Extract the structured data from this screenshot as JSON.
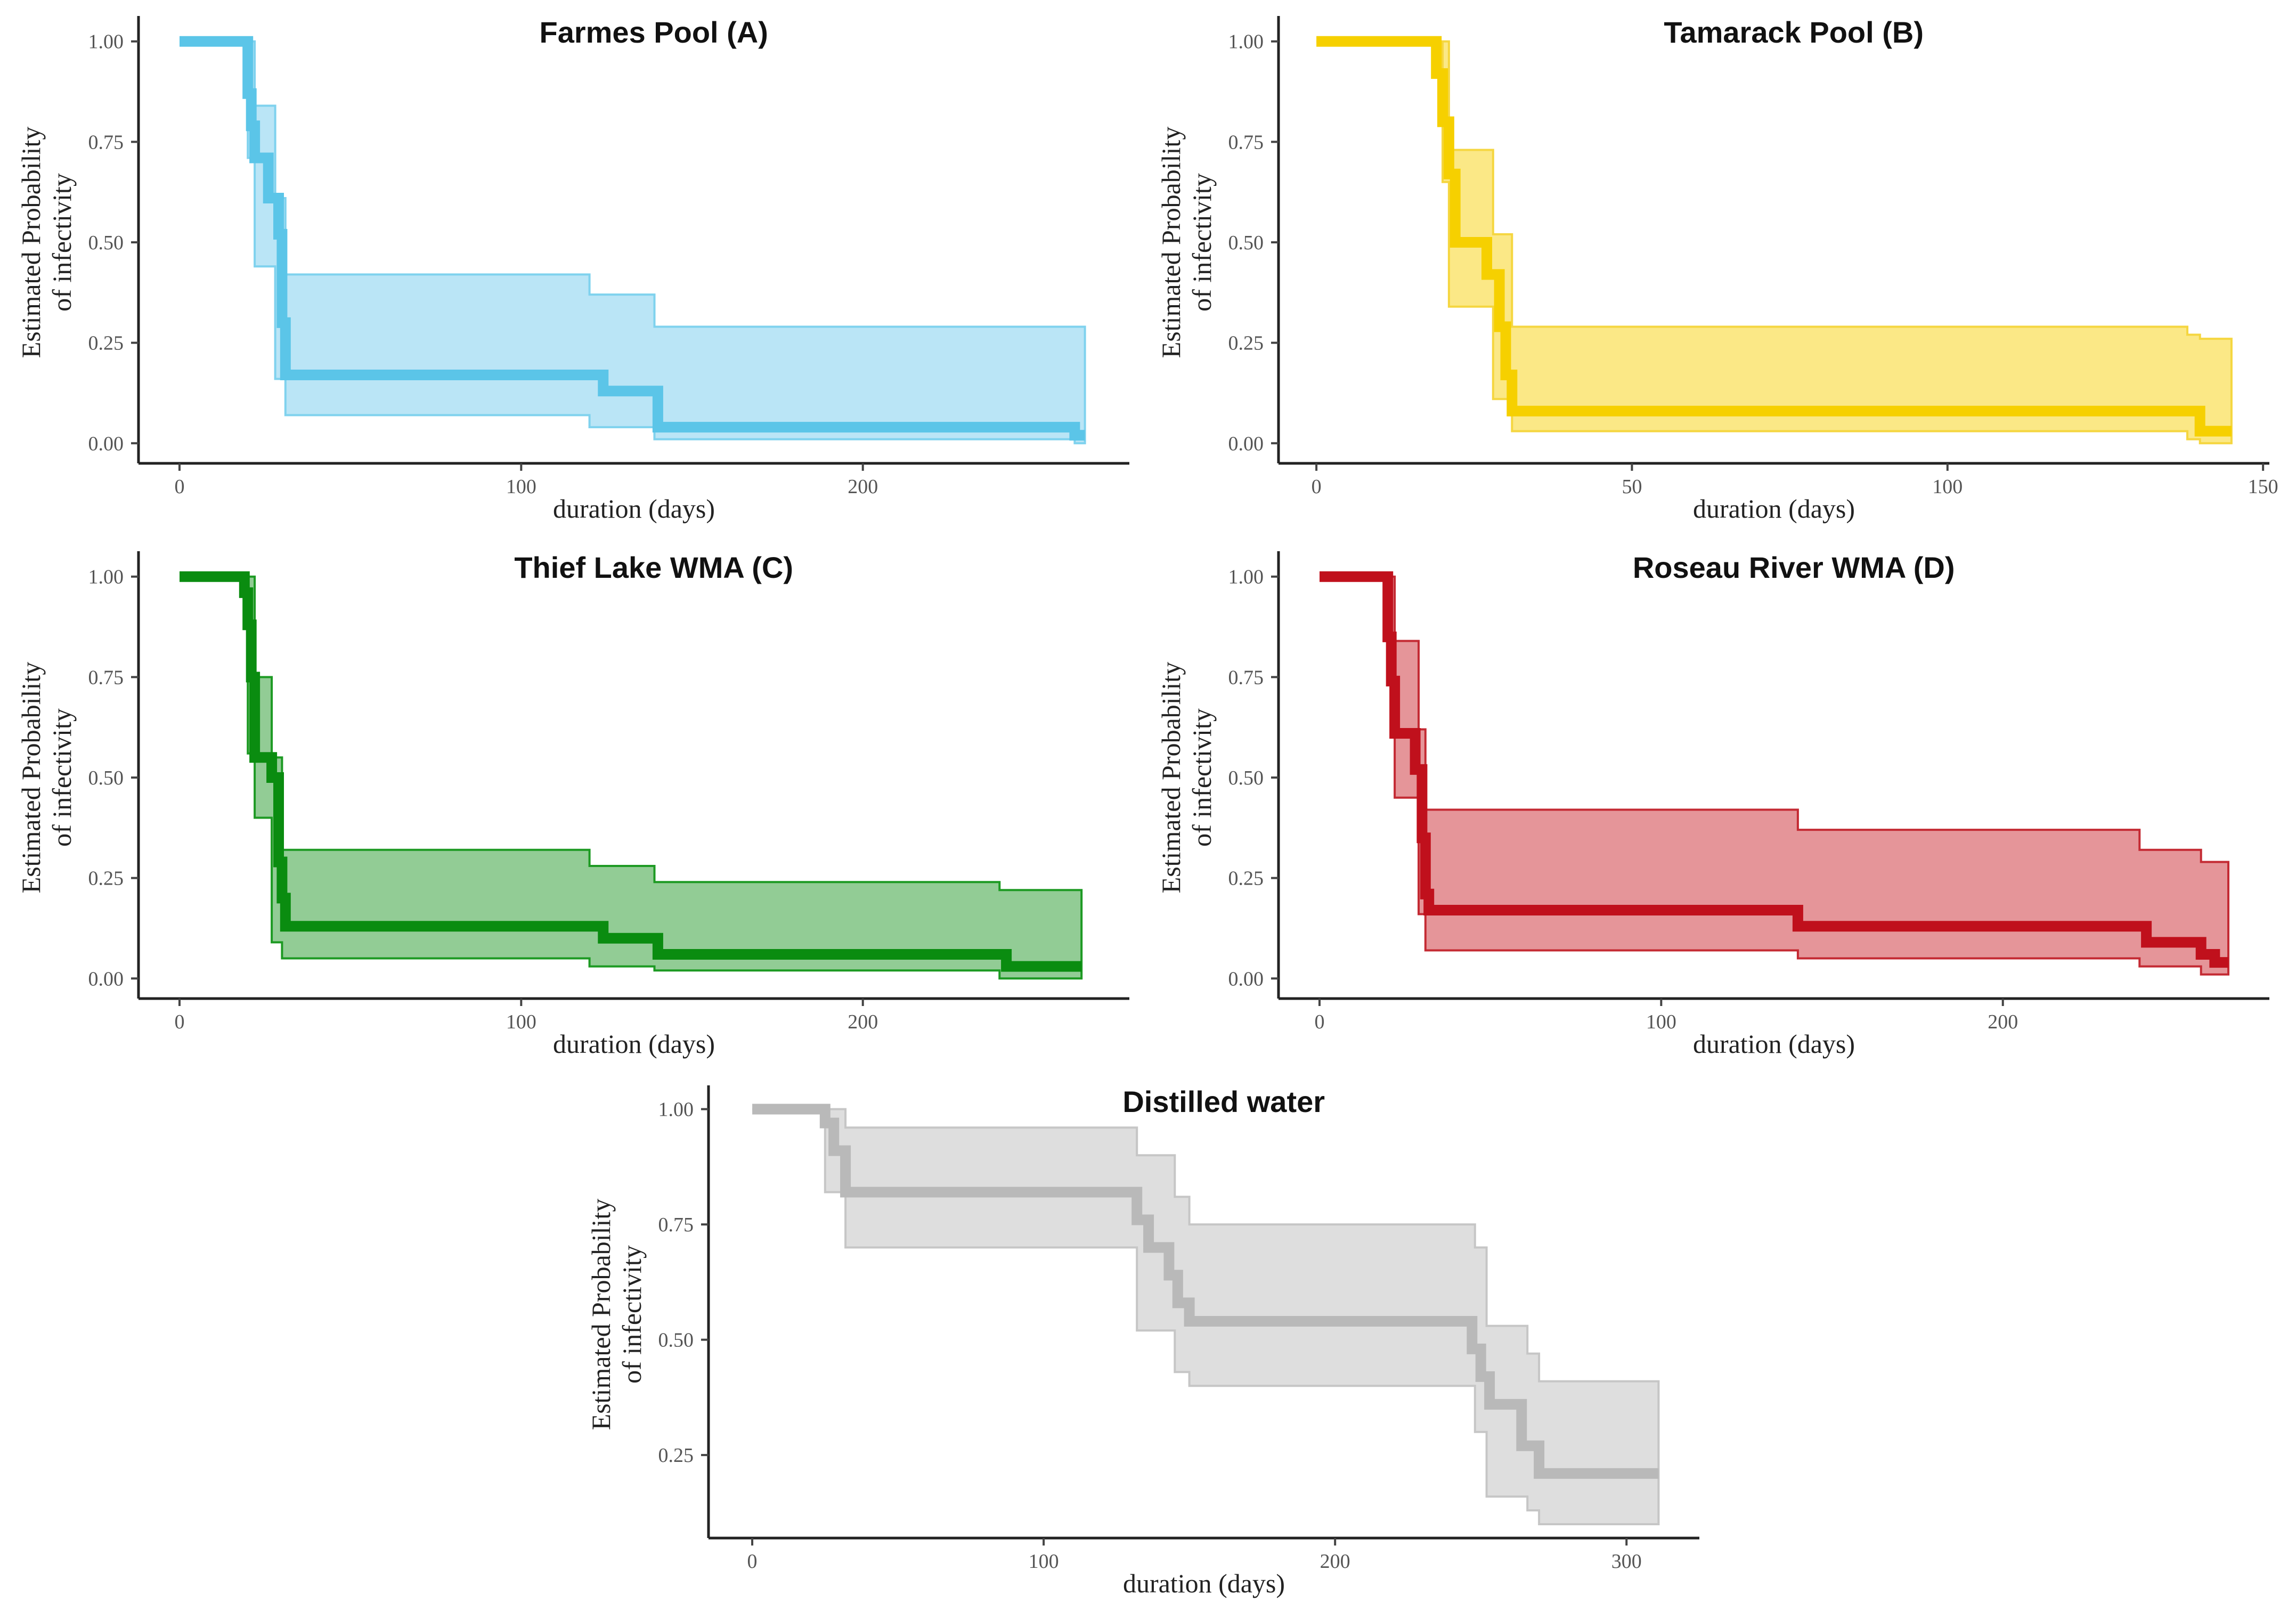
{
  "chart_data": [
    {
      "type": "step-survival",
      "title": "Farmes Pool (A)",
      "xlabel": "duration (days)",
      "ylabel": [
        "Estimated Probability",
        "of infectivity"
      ],
      "xlim": [
        -12,
        278
      ],
      "ylim": [
        -0.05,
        1.05
      ],
      "xticks": [
        0,
        100,
        200
      ],
      "xtick_labels": [
        "0",
        "100",
        "200"
      ],
      "yticks": [
        0,
        0.25,
        0.5,
        0.75,
        1
      ],
      "ytick_labels": [
        "0.00",
        "0.25",
        "0.50",
        "0.75",
        "1.00"
      ],
      "color": "#5bc5e8",
      "band_fill": "#b3e2f5",
      "band_stroke": "#7fd2ee",
      "x": [
        0,
        20,
        21,
        22,
        26,
        29,
        30,
        31,
        120,
        124,
        140,
        262,
        265
      ],
      "survival": [
        1.0,
        0.87,
        0.79,
        0.71,
        0.61,
        0.52,
        0.3,
        0.17,
        0.17,
        0.13,
        0.04,
        0.02,
        0.02
      ],
      "ci_x": [
        0,
        20,
        22,
        28,
        31,
        120,
        139,
        262,
        265
      ],
      "ci_lower": [
        1.0,
        0.71,
        0.44,
        0.16,
        0.07,
        0.04,
        0.01,
        0.0,
        0.0
      ],
      "ci_upper": [
        1.0,
        1.0,
        0.84,
        0.61,
        0.42,
        0.37,
        0.29,
        0.29,
        0.29
      ]
    },
    {
      "type": "step-survival",
      "title": "Tamarack Pool (B)",
      "xlabel": "duration (days)",
      "ylabel": [
        "Estimated Probability",
        "of infectivity"
      ],
      "xlim": [
        -6,
        151
      ],
      "ylim": [
        -0.05,
        1.05
      ],
      "xticks": [
        0,
        50,
        100,
        150
      ],
      "xtick_labels": [
        "0",
        "50",
        "100",
        "150"
      ],
      "yticks": [
        0,
        0.25,
        0.5,
        0.75,
        1
      ],
      "ytick_labels": [
        "0.00",
        "0.25",
        "0.50",
        "0.75",
        "1.00"
      ],
      "color": "#f6d000",
      "band_fill": "#fbe679",
      "band_stroke": "#f5d640",
      "x": [
        0,
        19,
        20,
        21,
        22,
        27,
        29,
        30,
        31,
        138,
        140,
        145
      ],
      "survival": [
        1.0,
        0.92,
        0.8,
        0.67,
        0.5,
        0.42,
        0.29,
        0.17,
        0.08,
        0.08,
        0.03,
        0.03
      ],
      "ci_x": [
        0,
        20,
        21,
        28,
        31,
        138,
        140,
        145
      ],
      "ci_lower": [
        1.0,
        0.65,
        0.34,
        0.11,
        0.03,
        0.01,
        0.0,
        0.0
      ],
      "ci_upper": [
        1.0,
        1.0,
        0.73,
        0.52,
        0.29,
        0.27,
        0.26,
        0.26
      ]
    },
    {
      "type": "step-survival",
      "title": "Thief Lake WMA (C)",
      "xlabel": "duration (days)",
      "ylabel": [
        "Estimated Probability",
        "of infectivity"
      ],
      "xlim": [
        -12,
        278
      ],
      "ylim": [
        -0.05,
        1.05
      ],
      "xticks": [
        0,
        100,
        200
      ],
      "xtick_labels": [
        "0",
        "100",
        "200"
      ],
      "yticks": [
        0,
        0.25,
        0.5,
        0.75,
        1
      ],
      "ytick_labels": [
        "0.00",
        "0.25",
        "0.50",
        "0.75",
        "1.00"
      ],
      "color": "#0a8c10",
      "band_fill": "#86c689",
      "band_stroke": "#1d9a23",
      "x": [
        0,
        19,
        20,
        21,
        22,
        27,
        29,
        30,
        31,
        120,
        124,
        140,
        240,
        242,
        264
      ],
      "survival": [
        1.0,
        0.96,
        0.88,
        0.75,
        0.55,
        0.5,
        0.29,
        0.2,
        0.13,
        0.13,
        0.1,
        0.06,
        0.06,
        0.03,
        0.03
      ],
      "ci_x": [
        0,
        20,
        22,
        27,
        30,
        120,
        139,
        240,
        264
      ],
      "ci_lower": [
        1.0,
        0.56,
        0.4,
        0.09,
        0.05,
        0.03,
        0.02,
        0.0,
        0.0
      ],
      "ci_upper": [
        1.0,
        1.0,
        0.75,
        0.55,
        0.32,
        0.28,
        0.24,
        0.22,
        0.22
      ]
    },
    {
      "type": "step-survival",
      "title": "Roseau River WMA (D)",
      "xlabel": "duration (days)",
      "ylabel": [
        "Estimated Probability",
        "of infectivity"
      ],
      "xlim": [
        -12,
        278
      ],
      "ylim": [
        -0.05,
        1.05
      ],
      "xticks": [
        0,
        100,
        200
      ],
      "xtick_labels": [
        "0",
        "100",
        "200"
      ],
      "yticks": [
        0,
        0.25,
        0.5,
        0.75,
        1
      ],
      "ytick_labels": [
        "0.00",
        "0.25",
        "0.50",
        "0.75",
        "1.00"
      ],
      "color": "#c0101c",
      "band_fill": "#e28a8e",
      "band_stroke": "#c42a33",
      "x": [
        0,
        20,
        21,
        22,
        28,
        30,
        31,
        32,
        140,
        240,
        242,
        258,
        262,
        266
      ],
      "survival": [
        1.0,
        0.85,
        0.74,
        0.61,
        0.52,
        0.35,
        0.21,
        0.17,
        0.13,
        0.13,
        0.09,
        0.06,
        0.04,
        0.04
      ],
      "ci_x": [
        0,
        21,
        22,
        29,
        31,
        140,
        240,
        258,
        266
      ],
      "ci_lower": [
        1.0,
        0.61,
        0.45,
        0.16,
        0.07,
        0.05,
        0.03,
        0.01,
        0.01
      ],
      "ci_upper": [
        1.0,
        1.0,
        0.84,
        0.62,
        0.42,
        0.37,
        0.32,
        0.29,
        0.29
      ]
    },
    {
      "type": "step-survival",
      "title": "Distilled water",
      "xlabel": "duration (days)",
      "ylabel": [
        "Estimated Probability",
        "of infectivity"
      ],
      "xlim": [
        -15,
        325
      ],
      "ylim": [
        0.07,
        1.04
      ],
      "xticks": [
        0,
        100,
        200,
        300
      ],
      "xtick_labels": [
        "0",
        "100",
        "200",
        "300"
      ],
      "yticks": [
        0.25,
        0.5,
        0.75,
        1
      ],
      "ytick_labels": [
        "0.25",
        "0.50",
        "0.75",
        "1.00"
      ],
      "color": "#b9b9b9",
      "band_fill": "#dadada",
      "band_stroke": "#c6c6c6",
      "x": [
        0,
        25,
        28,
        32,
        132,
        136,
        143,
        146,
        150,
        247,
        250,
        253,
        264,
        270,
        311
      ],
      "survival": [
        1.0,
        0.97,
        0.91,
        0.82,
        0.76,
        0.7,
        0.64,
        0.58,
        0.54,
        0.48,
        0.42,
        0.36,
        0.27,
        0.21,
        0.21
      ],
      "ci_x": [
        0,
        25,
        32,
        132,
        145,
        150,
        248,
        252,
        266,
        270,
        311
      ],
      "ci_lower": [
        1.0,
        0.82,
        0.7,
        0.52,
        0.43,
        0.4,
        0.3,
        0.16,
        0.13,
        0.1,
        0.1
      ],
      "ci_upper": [
        1.0,
        1.0,
        0.96,
        0.9,
        0.81,
        0.75,
        0.7,
        0.53,
        0.47,
        0.41,
        0.41
      ]
    }
  ]
}
